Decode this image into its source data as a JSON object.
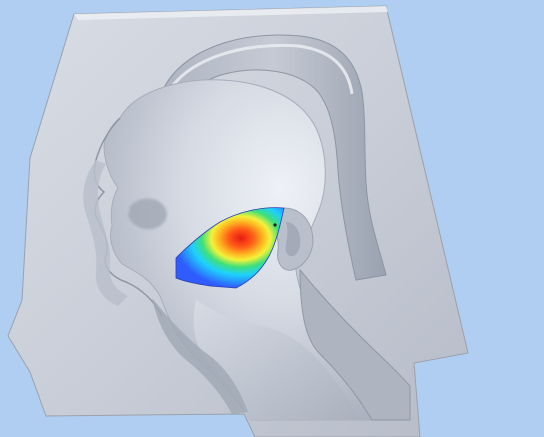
{
  "scene": {
    "background_color": "#b0cef1",
    "surface_color": "#c7ccd6",
    "heatmap_colors": [
      "#2f5cff",
      "#1ed0ff",
      "#3ee07a",
      "#f3f23a",
      "#ff8a1f",
      "#e81c12"
    ],
    "model": "head-and-neck-cutaway",
    "overlay": "cheek-thermal-heatmap"
  }
}
